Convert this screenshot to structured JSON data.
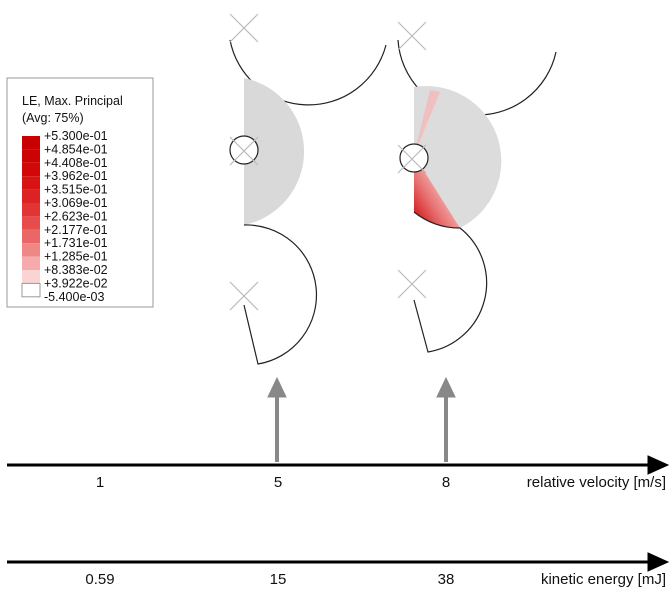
{
  "legend": {
    "title": "LE, Max. Principal",
    "subtitle": "(Avg: 75%)",
    "labels": [
      "+5.300e-01",
      "+4.854e-01",
      "+4.408e-01",
      "+3.962e-01",
      "+3.515e-01",
      "+3.069e-01",
      "+2.623e-01",
      "+2.177e-01",
      "+1.731e-01",
      "+1.285e-01",
      "+8.383e-02",
      "+3.922e-02",
      "-5.400e-03"
    ]
  },
  "axes": [
    {
      "ticks": [
        "1",
        "5",
        "8"
      ],
      "label": "relative velocity [m/s]"
    },
    {
      "ticks": [
        "0.59",
        "15",
        "38"
      ],
      "label": "kinetic energy [mJ]"
    }
  ]
}
